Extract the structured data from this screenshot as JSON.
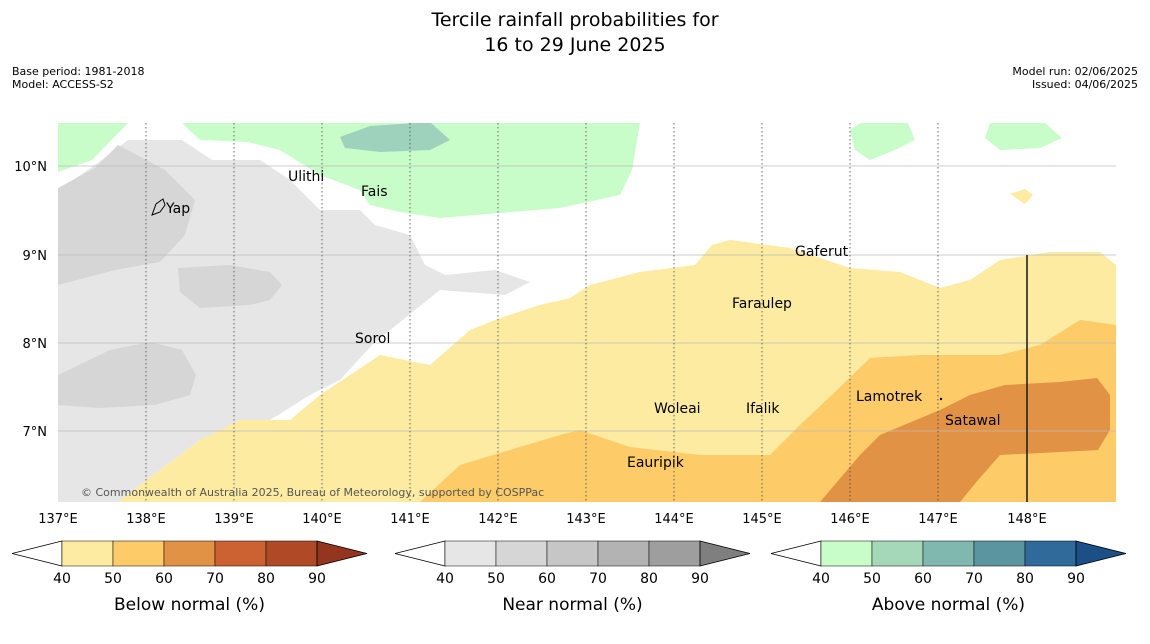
{
  "header": {
    "title_line1": "Tercile rainfall probabilities for",
    "title_line2": "16 to 29 June 2025",
    "base_period": "Base period: 1981-2018",
    "model": "Model: ACCESS-S2",
    "model_run": "Model run: 02/06/2025",
    "issued": "Issued: 04/06/2025"
  },
  "map": {
    "copyright": "© Commonwealth of Australia 2025, Bureau of Meteorology, supported by COSPPac",
    "lat_labels": [
      "10°N",
      "9°N",
      "8°N",
      "7°N"
    ],
    "lon_labels": [
      "137°E",
      "138°E",
      "139°E",
      "140°E",
      "141°E",
      "142°E",
      "143°E",
      "144°E",
      "145°E",
      "146°E",
      "147°E",
      "148°E"
    ],
    "places": [
      "Yap",
      "Ulithi",
      "Fais",
      "Gaferut",
      "Faraulep",
      "Sorol",
      "Woleai",
      "Ifalik",
      "Lamotrek",
      "Satawal",
      "Eauripik"
    ]
  },
  "legends": [
    {
      "label": "Below normal (%)",
      "ticks": [
        "40",
        "50",
        "60",
        "70",
        "80",
        "90"
      ],
      "colors": [
        "#fdeba1",
        "#fdcb68",
        "#e19244",
        "#cc6231",
        "#b04a26",
        "#94361f"
      ]
    },
    {
      "label": "Near normal (%)",
      "ticks": [
        "40",
        "50",
        "60",
        "70",
        "80",
        "90"
      ],
      "colors": [
        "#e6e6e6",
        "#d6d6d6",
        "#c6c6c6",
        "#b3b3b3",
        "#9e9e9e",
        "#7f7f7f"
      ]
    },
    {
      "label": "Above normal (%)",
      "ticks": [
        "40",
        "50",
        "60",
        "70",
        "80",
        "90"
      ],
      "colors": [
        "#c8fcc8",
        "#a5d8b8",
        "#80b8b0",
        "#5b95a0",
        "#2f6a9a",
        "#1b4f86"
      ]
    }
  ],
  "colors": {
    "below_40": "#fdeba1",
    "below_50": "#fdcb68",
    "below_60": "#e19244",
    "near_40": "#e6e6e6",
    "near_50": "#d6d6d6",
    "above_40": "#c8fcc8",
    "above_50": "#9fd2bd"
  }
}
